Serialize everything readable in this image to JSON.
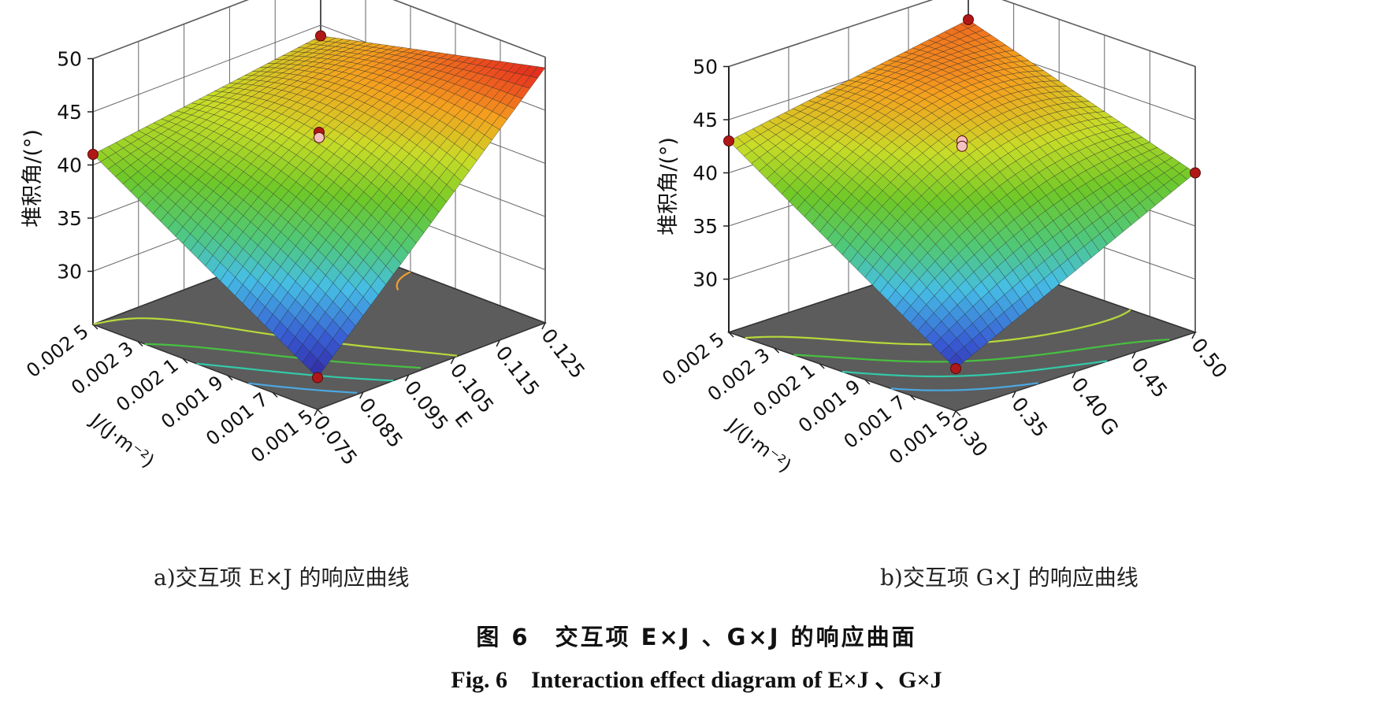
{
  "chart_data": [
    {
      "type": "surface3d",
      "panel_label": "a)交互项 E×J 的响应曲线",
      "zlabel": "堆积角/(°)",
      "xlabel": "E",
      "ylabel": "J/(J·m⁻²)",
      "z_ticks": [
        "30",
        "35",
        "40",
        "45",
        "50"
      ],
      "z_range": [
        25,
        50
      ],
      "x_ticks": [
        "0.075",
        "0.085",
        "0.095",
        "0.105",
        "0.115",
        "0.125"
      ],
      "x_range": [
        0.075,
        0.125
      ],
      "y_ticks": [
        "0.001 5",
        "0.001 7",
        "0.001 9",
        "0.002 1",
        "0.002 3",
        "0.002 5"
      ],
      "y_range": [
        0.0015,
        0.0025
      ],
      "corner_values": {
        "E_low_J_low": 28.0,
        "E_high_J_low": 49.0,
        "E_low_J_high": 41.0,
        "E_high_J_high": 44.0
      },
      "center_value": 43.0,
      "center_curvature": -1.5,
      "design_points": [
        {
          "E": 0.075,
          "J": 0.0015,
          "z": 28.0
        },
        {
          "E": 0.075,
          "J": 0.0025,
          "z": 41.0
        },
        {
          "E": 0.125,
          "J": 0.0025,
          "z": 44.0
        },
        {
          "E": 0.1,
          "J": 0.002,
          "z": 43.0
        },
        {
          "E": 0.1,
          "J": 0.002,
          "z": 42.5
        }
      ],
      "contour_colors": [
        "#4ba8e0",
        "#33c9a8",
        "#47c040",
        "#b7d93a",
        "#f0a030"
      ],
      "grid": true
    },
    {
      "type": "surface3d",
      "panel_label": "b)交互项 G×J 的响应曲线",
      "zlabel": "堆积角/(°)",
      "xlabel": "G",
      "ylabel": "J/(J·m⁻²)",
      "z_ticks": [
        "30",
        "35",
        "40",
        "45",
        "50"
      ],
      "z_range": [
        25,
        50
      ],
      "x_ticks": [
        "0.30",
        "0.35",
        "0.40",
        "0.45",
        "0.50"
      ],
      "x_range": [
        0.3,
        0.5
      ],
      "y_ticks": [
        "0.001 5",
        "0.001 7",
        "0.001 9",
        "0.002 1",
        "0.002 3",
        "0.002 5"
      ],
      "y_range": [
        0.0015,
        0.0025
      ],
      "corner_values": {
        "G_low_J_low": 29.0,
        "G_high_J_low": 40.0,
        "G_low_J_high": 43.0,
        "G_high_J_high": 47.0
      },
      "center_value": 43.5,
      "center_curvature": -1.2,
      "design_points": [
        {
          "G": 0.3,
          "J": 0.0015,
          "z": 29.0
        },
        {
          "G": 0.5,
          "J": 0.0015,
          "z": 40.0
        },
        {
          "G": 0.3,
          "J": 0.0025,
          "z": 43.0
        },
        {
          "G": 0.5,
          "J": 0.0025,
          "z": 47.0
        },
        {
          "G": 0.4,
          "J": 0.002,
          "z": 43.0
        },
        {
          "G": 0.4,
          "J": 0.002,
          "z": 42.5
        }
      ],
      "contour_colors": [
        "#4ba8e0",
        "#33c9a8",
        "#47c040",
        "#b7d93a"
      ],
      "grid": true
    }
  ],
  "figure": {
    "caption_cn": "图 6　交互项 E×J 、G×J 的响应曲面",
    "caption_en": "Fig. 6　Interaction effect diagram of E×J 、G×J"
  }
}
